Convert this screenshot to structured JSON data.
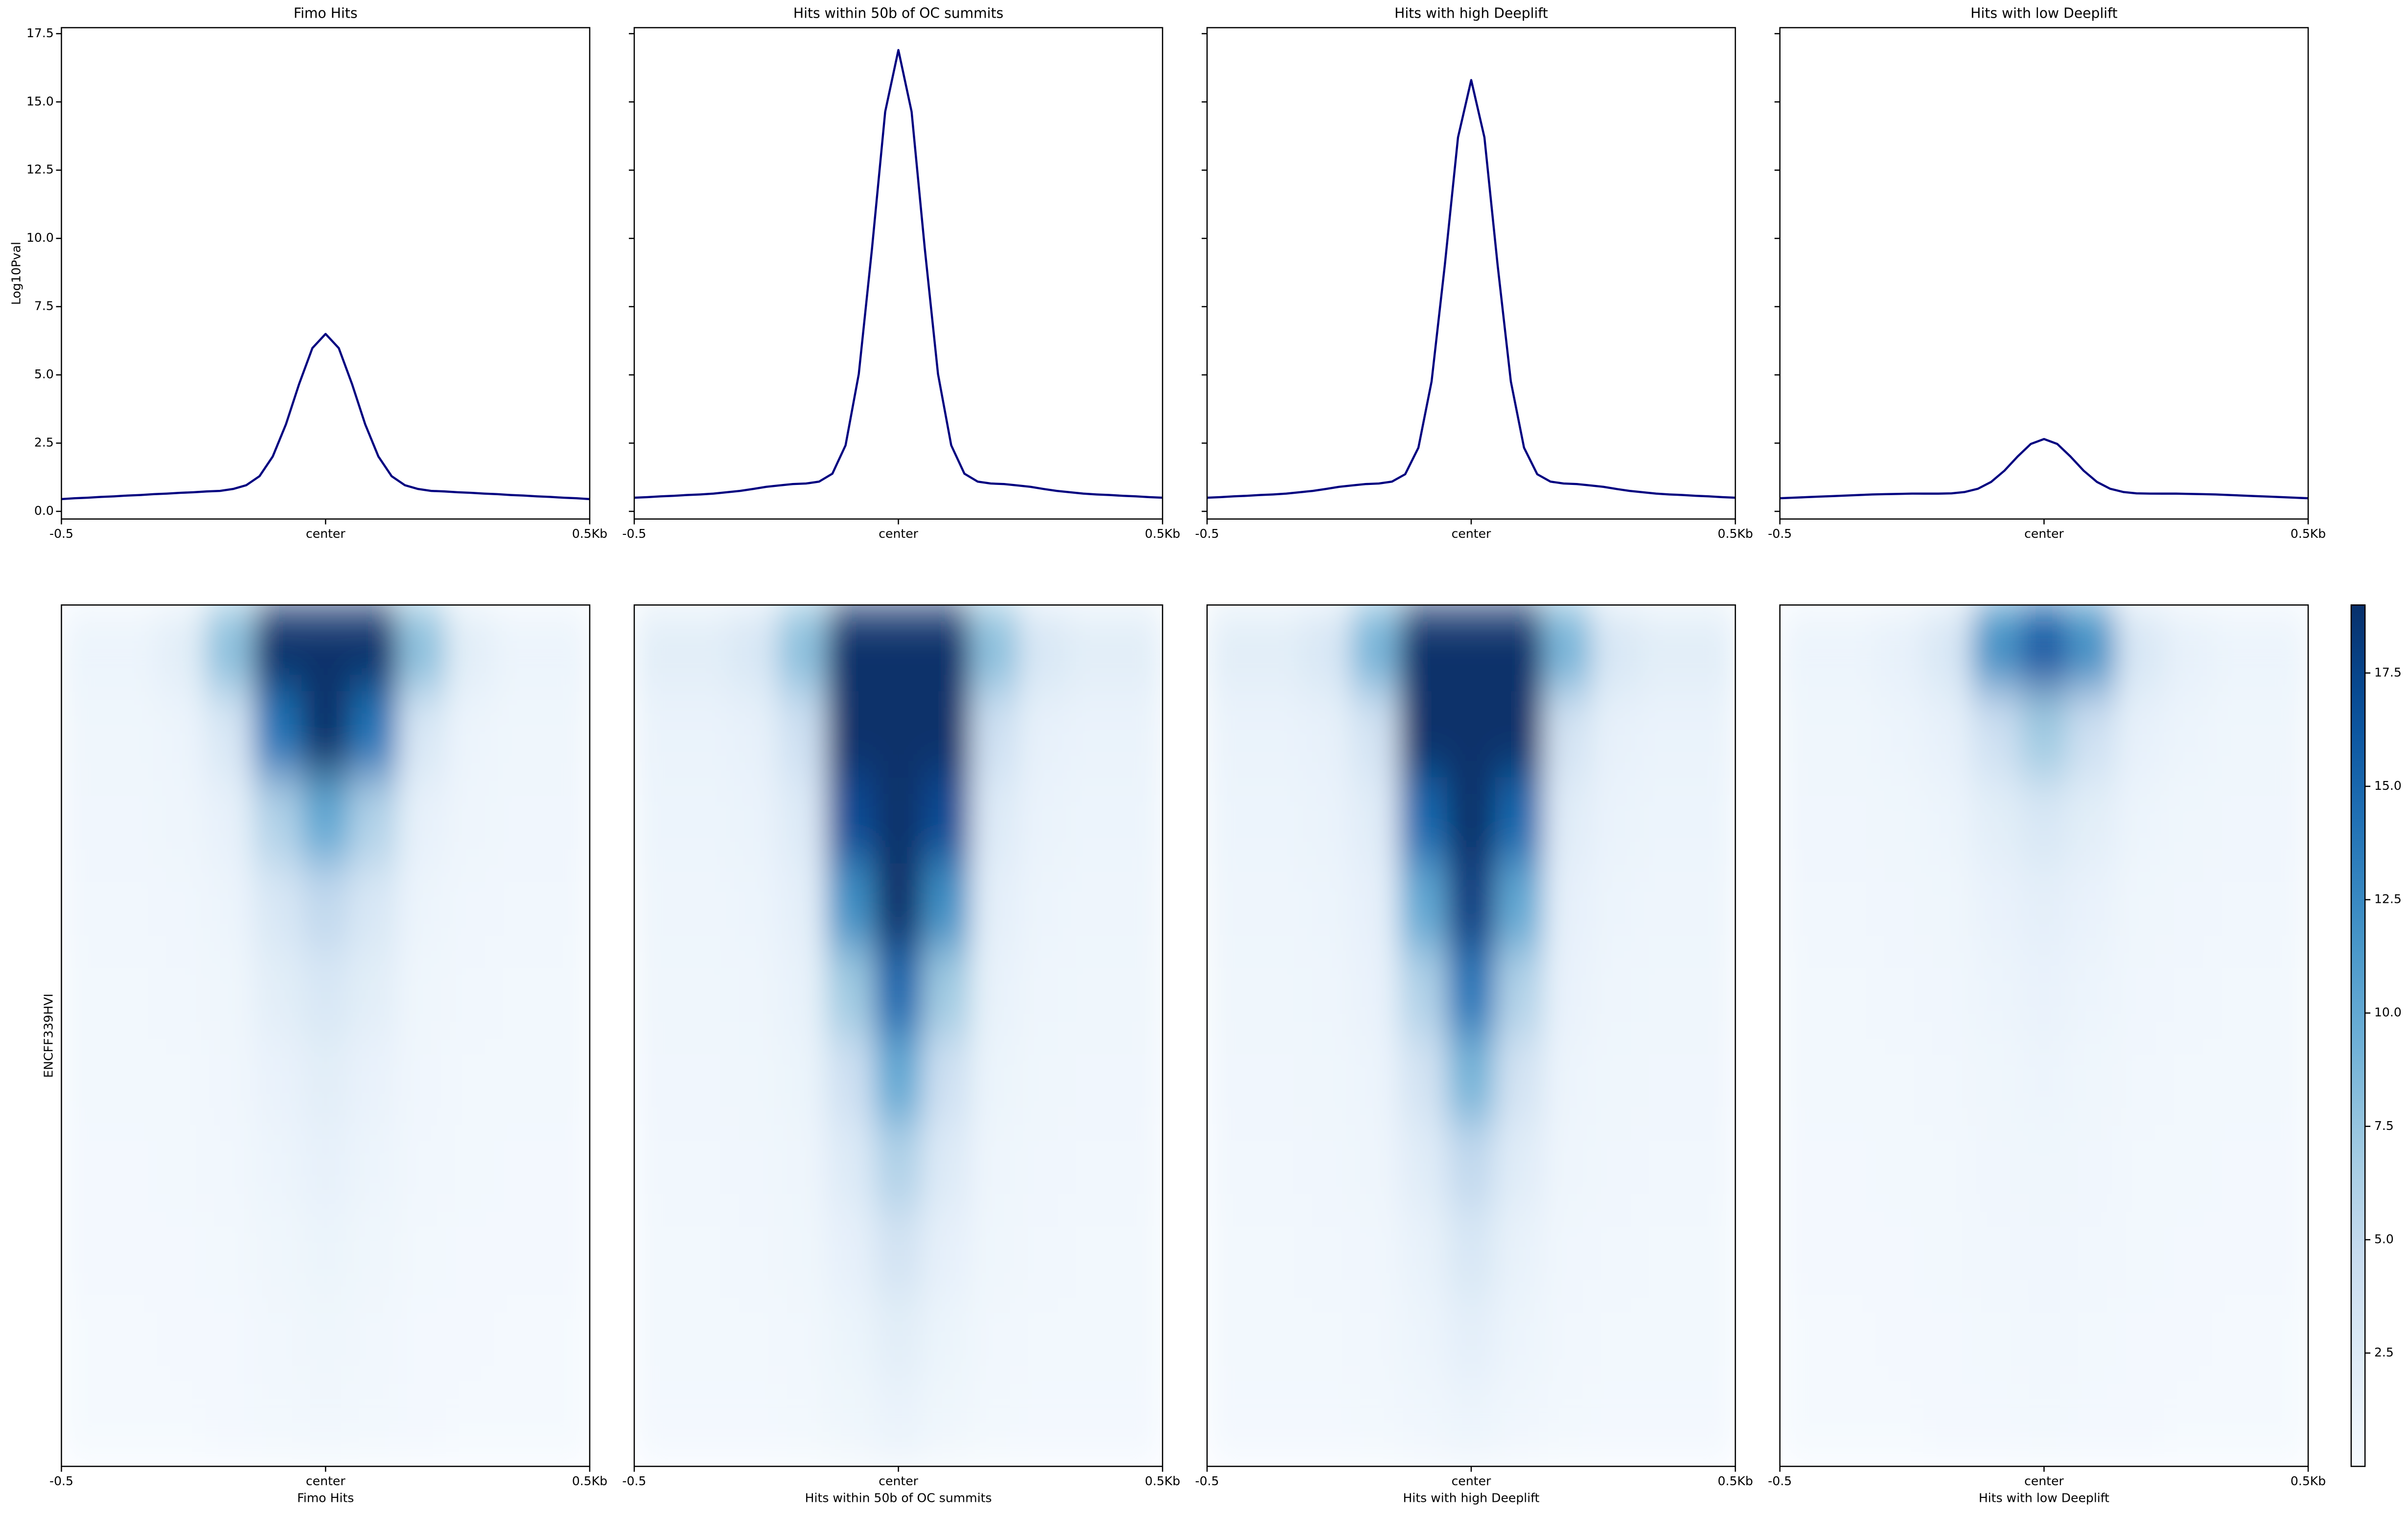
{
  "chart_data": [
    {
      "type": "line",
      "title": "Fimo Hits",
      "ylabel": "Log10Pval",
      "x": [
        -0.5,
        -0.475,
        -0.45,
        -0.425,
        -0.4,
        -0.375,
        -0.35,
        -0.325,
        -0.3,
        -0.275,
        -0.25,
        -0.225,
        -0.2,
        -0.175,
        -0.15,
        -0.125,
        -0.1,
        -0.075,
        -0.05,
        -0.025,
        0,
        0.025,
        0.05,
        0.075,
        0.1,
        0.125,
        0.15,
        0.175,
        0.2,
        0.225,
        0.25,
        0.275,
        0.3,
        0.325,
        0.35,
        0.375,
        0.4,
        0.425,
        0.45,
        0.475,
        0.5
      ],
      "series": [
        {
          "color": "#000080",
          "values": [
            0.45,
            0.48,
            0.5,
            0.53,
            0.55,
            0.58,
            0.6,
            0.63,
            0.65,
            0.68,
            0.7,
            0.73,
            0.75,
            0.82,
            0.96,
            1.29,
            2.01,
            3.19,
            4.67,
            5.98,
            6.5,
            5.98,
            4.67,
            3.19,
            2.01,
            1.29,
            0.96,
            0.82,
            0.75,
            0.73,
            0.7,
            0.68,
            0.65,
            0.63,
            0.6,
            0.58,
            0.55,
            0.53,
            0.5,
            0.48,
            0.45
          ]
        }
      ],
      "xlim": [
        -0.5,
        0.5
      ],
      "xticks": [
        -0.5,
        {
          "value": 0,
          "label": "center"
        },
        {
          "value": 0.5,
          "label": "0.5Kb"
        }
      ],
      "ylim": [
        -0.28,
        17.72
      ],
      "yticks": [
        {
          "value": 0,
          "label": "0.0"
        },
        2.5,
        {
          "value": 5,
          "label": "5.0"
        },
        7.5,
        {
          "value": 10,
          "label": "10.0"
        },
        12.5,
        {
          "value": 15,
          "label": "15.0"
        },
        17.5
      ]
    },
    {
      "type": "line",
      "title": "Hits within 50b of OC summits",
      "x": [
        -0.5,
        -0.475,
        -0.45,
        -0.425,
        -0.4,
        -0.375,
        -0.35,
        -0.325,
        -0.3,
        -0.275,
        -0.25,
        -0.225,
        -0.2,
        -0.175,
        -0.15,
        -0.125,
        -0.1,
        -0.075,
        -0.05,
        -0.025,
        0,
        0.025,
        0.05,
        0.075,
        0.1,
        0.125,
        0.15,
        0.175,
        0.2,
        0.225,
        0.25,
        0.275,
        0.3,
        0.325,
        0.35,
        0.375,
        0.4,
        0.425,
        0.45,
        0.475,
        0.5
      ],
      "series": [
        {
          "color": "#000080",
          "values": [
            0.5,
            0.52,
            0.55,
            0.57,
            0.6,
            0.62,
            0.65,
            0.7,
            0.75,
            0.82,
            0.9,
            0.95,
            1.0,
            1.02,
            1.09,
            1.38,
            2.42,
            5.03,
            9.62,
            14.64,
            16.9,
            14.64,
            9.62,
            5.03,
            2.42,
            1.38,
            1.09,
            1.02,
            1.0,
            0.95,
            0.9,
            0.82,
            0.75,
            0.7,
            0.65,
            0.62,
            0.6,
            0.57,
            0.55,
            0.52,
            0.5
          ]
        }
      ],
      "xlim": [
        -0.5,
        0.5
      ],
      "xticks": [
        -0.5,
        {
          "value": 0,
          "label": "center"
        },
        {
          "value": 0.5,
          "label": "0.5Kb"
        }
      ],
      "ylim": [
        -0.28,
        17.72
      ],
      "yticks": [
        0,
        2.5,
        5,
        7.5,
        10,
        12.5,
        15,
        17.5
      ],
      "ytick_labels": false
    },
    {
      "type": "line",
      "title": "Hits with high Deeplift",
      "x": [
        -0.5,
        -0.475,
        -0.45,
        -0.425,
        -0.4,
        -0.375,
        -0.35,
        -0.325,
        -0.3,
        -0.275,
        -0.25,
        -0.225,
        -0.2,
        -0.175,
        -0.15,
        -0.125,
        -0.1,
        -0.075,
        -0.05,
        -0.025,
        0,
        0.025,
        0.05,
        0.075,
        0.1,
        0.125,
        0.15,
        0.175,
        0.2,
        0.225,
        0.25,
        0.275,
        0.3,
        0.325,
        0.35,
        0.375,
        0.4,
        0.425,
        0.45,
        0.475,
        0.5
      ],
      "series": [
        {
          "color": "#000080",
          "values": [
            0.5,
            0.52,
            0.55,
            0.57,
            0.6,
            0.62,
            0.65,
            0.7,
            0.75,
            0.82,
            0.9,
            0.95,
            1.0,
            1.02,
            1.09,
            1.36,
            2.33,
            4.76,
            9.02,
            13.7,
            15.8,
            13.7,
            9.02,
            4.76,
            2.33,
            1.36,
            1.09,
            1.02,
            1.0,
            0.95,
            0.9,
            0.82,
            0.75,
            0.7,
            0.65,
            0.62,
            0.6,
            0.57,
            0.55,
            0.52,
            0.5
          ]
        }
      ],
      "xlim": [
        -0.5,
        0.5
      ],
      "xticks": [
        -0.5,
        {
          "value": 0,
          "label": "center"
        },
        {
          "value": 0.5,
          "label": "0.5Kb"
        }
      ],
      "ylim": [
        -0.28,
        17.72
      ],
      "yticks": [
        0,
        2.5,
        5,
        7.5,
        10,
        12.5,
        15,
        17.5
      ],
      "ytick_labels": false
    },
    {
      "type": "line",
      "title": "Hits with low Deeplift",
      "x": [
        -0.5,
        -0.475,
        -0.45,
        -0.425,
        -0.4,
        -0.375,
        -0.35,
        -0.325,
        -0.3,
        -0.275,
        -0.25,
        -0.225,
        -0.2,
        -0.175,
        -0.15,
        -0.125,
        -0.1,
        -0.075,
        -0.05,
        -0.025,
        0,
        0.025,
        0.05,
        0.075,
        0.1,
        0.125,
        0.15,
        0.175,
        0.2,
        0.225,
        0.25,
        0.275,
        0.3,
        0.325,
        0.35,
        0.375,
        0.4,
        0.425,
        0.45,
        0.475,
        0.5
      ],
      "series": [
        {
          "color": "#000080",
          "values": [
            0.48,
            0.5,
            0.52,
            0.54,
            0.56,
            0.58,
            0.6,
            0.62,
            0.63,
            0.64,
            0.65,
            0.65,
            0.65,
            0.66,
            0.71,
            0.83,
            1.08,
            1.49,
            2.01,
            2.47,
            2.65,
            2.47,
            2.01,
            1.49,
            1.08,
            0.83,
            0.71,
            0.66,
            0.65,
            0.65,
            0.65,
            0.64,
            0.63,
            0.62,
            0.6,
            0.58,
            0.56,
            0.54,
            0.52,
            0.5,
            0.48
          ]
        }
      ],
      "xlim": [
        -0.5,
        0.5
      ],
      "xticks": [
        -0.5,
        {
          "value": 0,
          "label": "center"
        },
        {
          "value": 0.5,
          "label": "0.5Kb"
        }
      ],
      "ylim": [
        -0.28,
        17.72
      ],
      "yticks": [
        0,
        2.5,
        5,
        7.5,
        10,
        12.5,
        15,
        17.5
      ],
      "ytick_labels": false
    },
    {
      "type": "heatmap",
      "xlabel": "Fimo Hits",
      "ylabel": "ENCFF339HVI",
      "colormap": "Blues",
      "zlim": [
        0,
        19
      ],
      "xlim": [
        -0.5,
        0.5
      ],
      "xticks": [
        -0.5,
        {
          "value": 0,
          "label": "center"
        },
        {
          "value": 0.5,
          "label": "0.5Kb"
        }
      ],
      "z": [
        [
          1,
          1,
          2,
          8,
          19,
          19,
          19,
          8,
          2,
          1,
          1
        ],
        [
          0.8,
          0.8,
          1,
          3,
          14,
          19,
          14,
          3,
          1,
          0.8,
          0.8
        ],
        [
          0.7,
          0.7,
          0.9,
          1.5,
          6,
          10,
          6,
          1.5,
          0.9,
          0.7,
          0.7
        ],
        [
          0.6,
          0.6,
          0.7,
          1,
          3,
          5,
          3,
          1,
          0.7,
          0.6,
          0.6
        ],
        [
          0.5,
          0.5,
          0.6,
          0.8,
          2,
          3,
          2,
          0.8,
          0.6,
          0.5,
          0.5
        ],
        [
          0.5,
          0.5,
          0.5,
          0.7,
          1.3,
          2,
          1.3,
          0.7,
          0.5,
          0.5,
          0.5
        ],
        [
          0.4,
          0.4,
          0.5,
          0.6,
          1,
          1.5,
          1,
          0.6,
          0.5,
          0.4,
          0.4
        ],
        [
          0.4,
          0.4,
          0.4,
          0.5,
          0.8,
          1.1,
          0.8,
          0.5,
          0.4,
          0.4,
          0.4
        ],
        [
          0.3,
          0.3,
          0.4,
          0.4,
          0.6,
          0.8,
          0.6,
          0.4,
          0.4,
          0.3,
          0.3
        ],
        [
          0.3,
          0.3,
          0.3,
          0.4,
          0.5,
          0.6,
          0.5,
          0.4,
          0.3,
          0.3,
          0.3
        ]
      ]
    },
    {
      "type": "heatmap",
      "xlabel": "Hits within 50b of OC summits",
      "colormap": "Blues",
      "zlim": [
        0,
        19
      ],
      "xlim": [
        -0.5,
        0.5
      ],
      "xticks": [
        -0.5,
        {
          "value": 0,
          "label": "center"
        },
        {
          "value": 0.5,
          "label": "0.5Kb"
        }
      ],
      "z": [
        [
          2,
          2,
          3,
          8,
          19,
          19,
          19,
          8,
          3,
          2,
          2
        ],
        [
          1.2,
          1.2,
          1.5,
          4,
          19,
          19,
          19,
          4,
          1.5,
          1.2,
          1.2
        ],
        [
          1,
          1,
          1.2,
          2.5,
          17,
          19,
          17,
          2.5,
          1.2,
          1,
          1
        ],
        [
          0.9,
          0.9,
          1,
          1.8,
          12,
          19,
          12,
          1.8,
          1,
          0.9,
          0.9
        ],
        [
          0.8,
          0.8,
          0.9,
          1.4,
          7,
          15,
          7,
          1.4,
          0.9,
          0.8,
          0.8
        ],
        [
          0.7,
          0.7,
          0.8,
          1.1,
          4,
          10,
          4,
          1.1,
          0.8,
          0.7,
          0.7
        ],
        [
          0.6,
          0.6,
          0.7,
          0.9,
          2.5,
          6,
          2.5,
          0.9,
          0.7,
          0.6,
          0.6
        ],
        [
          0.5,
          0.5,
          0.6,
          0.8,
          1.6,
          3.5,
          1.6,
          0.8,
          0.6,
          0.5,
          0.5
        ],
        [
          0.5,
          0.5,
          0.5,
          0.6,
          1.1,
          2,
          1.1,
          0.6,
          0.5,
          0.5,
          0.5
        ],
        [
          0.4,
          0.4,
          0.4,
          0.5,
          0.8,
          1.2,
          0.8,
          0.5,
          0.4,
          0.4,
          0.4
        ]
      ]
    },
    {
      "type": "heatmap",
      "xlabel": "Hits with high Deeplift",
      "colormap": "Blues",
      "zlim": [
        0,
        19
      ],
      "xlim": [
        -0.5,
        0.5
      ],
      "xticks": [
        -0.5,
        {
          "value": 0,
          "label": "center"
        },
        {
          "value": 0.5,
          "label": "0.5Kb"
        }
      ],
      "z": [
        [
          2,
          2,
          3,
          9,
          19,
          19,
          19,
          9,
          3,
          2,
          2
        ],
        [
          1.2,
          1.2,
          1.5,
          3.5,
          19,
          19,
          19,
          3.5,
          1.5,
          1.2,
          1.2
        ],
        [
          1,
          1,
          1.2,
          2.2,
          15,
          19,
          15,
          2.2,
          1.2,
          1,
          1
        ],
        [
          0.9,
          0.9,
          1,
          1.6,
          10,
          18,
          10,
          1.6,
          1,
          0.9,
          0.9
        ],
        [
          0.8,
          0.8,
          0.9,
          1.3,
          6,
          14,
          6,
          1.3,
          0.9,
          0.8,
          0.8
        ],
        [
          0.7,
          0.7,
          0.8,
          1,
          3.5,
          9,
          3.5,
          1,
          0.8,
          0.7,
          0.7
        ],
        [
          0.6,
          0.6,
          0.7,
          0.9,
          2.2,
          5,
          2.2,
          0.9,
          0.7,
          0.6,
          0.6
        ],
        [
          0.5,
          0.5,
          0.6,
          0.7,
          1.4,
          3,
          1.4,
          0.7,
          0.6,
          0.5,
          0.5
        ],
        [
          0.5,
          0.5,
          0.5,
          0.6,
          1,
          1.8,
          1,
          0.6,
          0.5,
          0.5,
          0.5
        ],
        [
          0.4,
          0.4,
          0.4,
          0.5,
          0.7,
          1,
          0.7,
          0.5,
          0.4,
          0.4,
          0.4
        ]
      ]
    },
    {
      "type": "heatmap",
      "xlabel": "Hits with low Deeplift",
      "colormap": "Blues",
      "zlim": [
        0,
        19
      ],
      "xlim": [
        -0.5,
        0.5
      ],
      "xticks": [
        -0.5,
        {
          "value": 0,
          "label": "center"
        },
        {
          "value": 0.5,
          "label": "0.5Kb"
        }
      ],
      "z": [
        [
          1,
          1,
          1.5,
          3,
          12,
          16,
          12,
          3,
          1.5,
          1,
          1
        ],
        [
          0.8,
          0.8,
          1,
          1.5,
          4,
          7,
          4,
          1.5,
          1,
          0.8,
          0.8
        ],
        [
          0.7,
          0.7,
          0.8,
          1,
          2,
          3,
          2,
          1,
          0.8,
          0.7,
          0.7
        ],
        [
          0.6,
          0.6,
          0.7,
          0.8,
          1.3,
          1.8,
          1.3,
          0.8,
          0.7,
          0.6,
          0.6
        ],
        [
          0.5,
          0.5,
          0.6,
          0.7,
          1,
          1.3,
          1,
          0.7,
          0.6,
          0.5,
          0.5
        ],
        [
          0.5,
          0.5,
          0.5,
          0.6,
          0.8,
          1,
          0.8,
          0.6,
          0.5,
          0.5,
          0.5
        ],
        [
          0.4,
          0.4,
          0.5,
          0.5,
          0.7,
          0.8,
          0.7,
          0.5,
          0.5,
          0.4,
          0.4
        ],
        [
          0.4,
          0.4,
          0.4,
          0.5,
          0.6,
          0.7,
          0.6,
          0.5,
          0.4,
          0.4,
          0.4
        ],
        [
          0.3,
          0.3,
          0.4,
          0.4,
          0.5,
          0.6,
          0.5,
          0.4,
          0.4,
          0.3,
          0.3
        ],
        [
          0.3,
          0.3,
          0.3,
          0.4,
          0.4,
          0.5,
          0.4,
          0.4,
          0.3,
          0.3,
          0.3
        ]
      ],
      "colorbar": true,
      "cticks": [
        2.5,
        {
          "value": 5,
          "label": "5.0"
        },
        7.5,
        {
          "value": 10,
          "label": "10.0"
        },
        12.5,
        {
          "value": 15,
          "label": "15.0"
        },
        17.5
      ]
    }
  ]
}
